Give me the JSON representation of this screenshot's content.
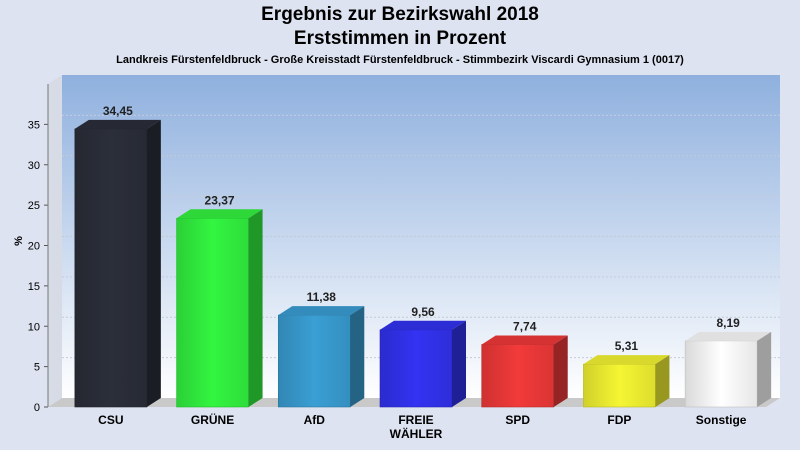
{
  "chart_data": {
    "type": "bar",
    "title": "Ergebnis zur Bezirkswahl 2018",
    "title2": "Erststimmen in Prozent",
    "subtitle": "Landkreis Fürstenfeldbruck - Große Kreisstadt Fürstenfeldbruck - Stimmbezirk Viscardi Gymnasium 1 (0017)",
    "ylabel": "%",
    "ylim": [
      0,
      40
    ],
    "yticks": [
      0,
      5,
      10,
      15,
      20,
      25,
      30,
      35
    ],
    "categories": [
      [
        "CSU"
      ],
      [
        "GRÜNE"
      ],
      [
        "AfD"
      ],
      [
        "FREIE",
        "WÄHLER"
      ],
      [
        "SPD"
      ],
      [
        "FDP"
      ],
      [
        "Sonstige"
      ]
    ],
    "values": [
      34.45,
      23.37,
      11.38,
      9.56,
      7.74,
      5.31,
      8.19
    ],
    "value_labels": [
      "34,45",
      "23,37",
      "11,38",
      "9,56",
      "7,74",
      "5,31",
      "8,19"
    ],
    "colors": [
      "#2b2f3a",
      "#33f540",
      "#3a9fd4",
      "#3333f2",
      "#f23a3a",
      "#f5f533",
      "#ffffff"
    ],
    "grid": true,
    "legend": "none"
  }
}
